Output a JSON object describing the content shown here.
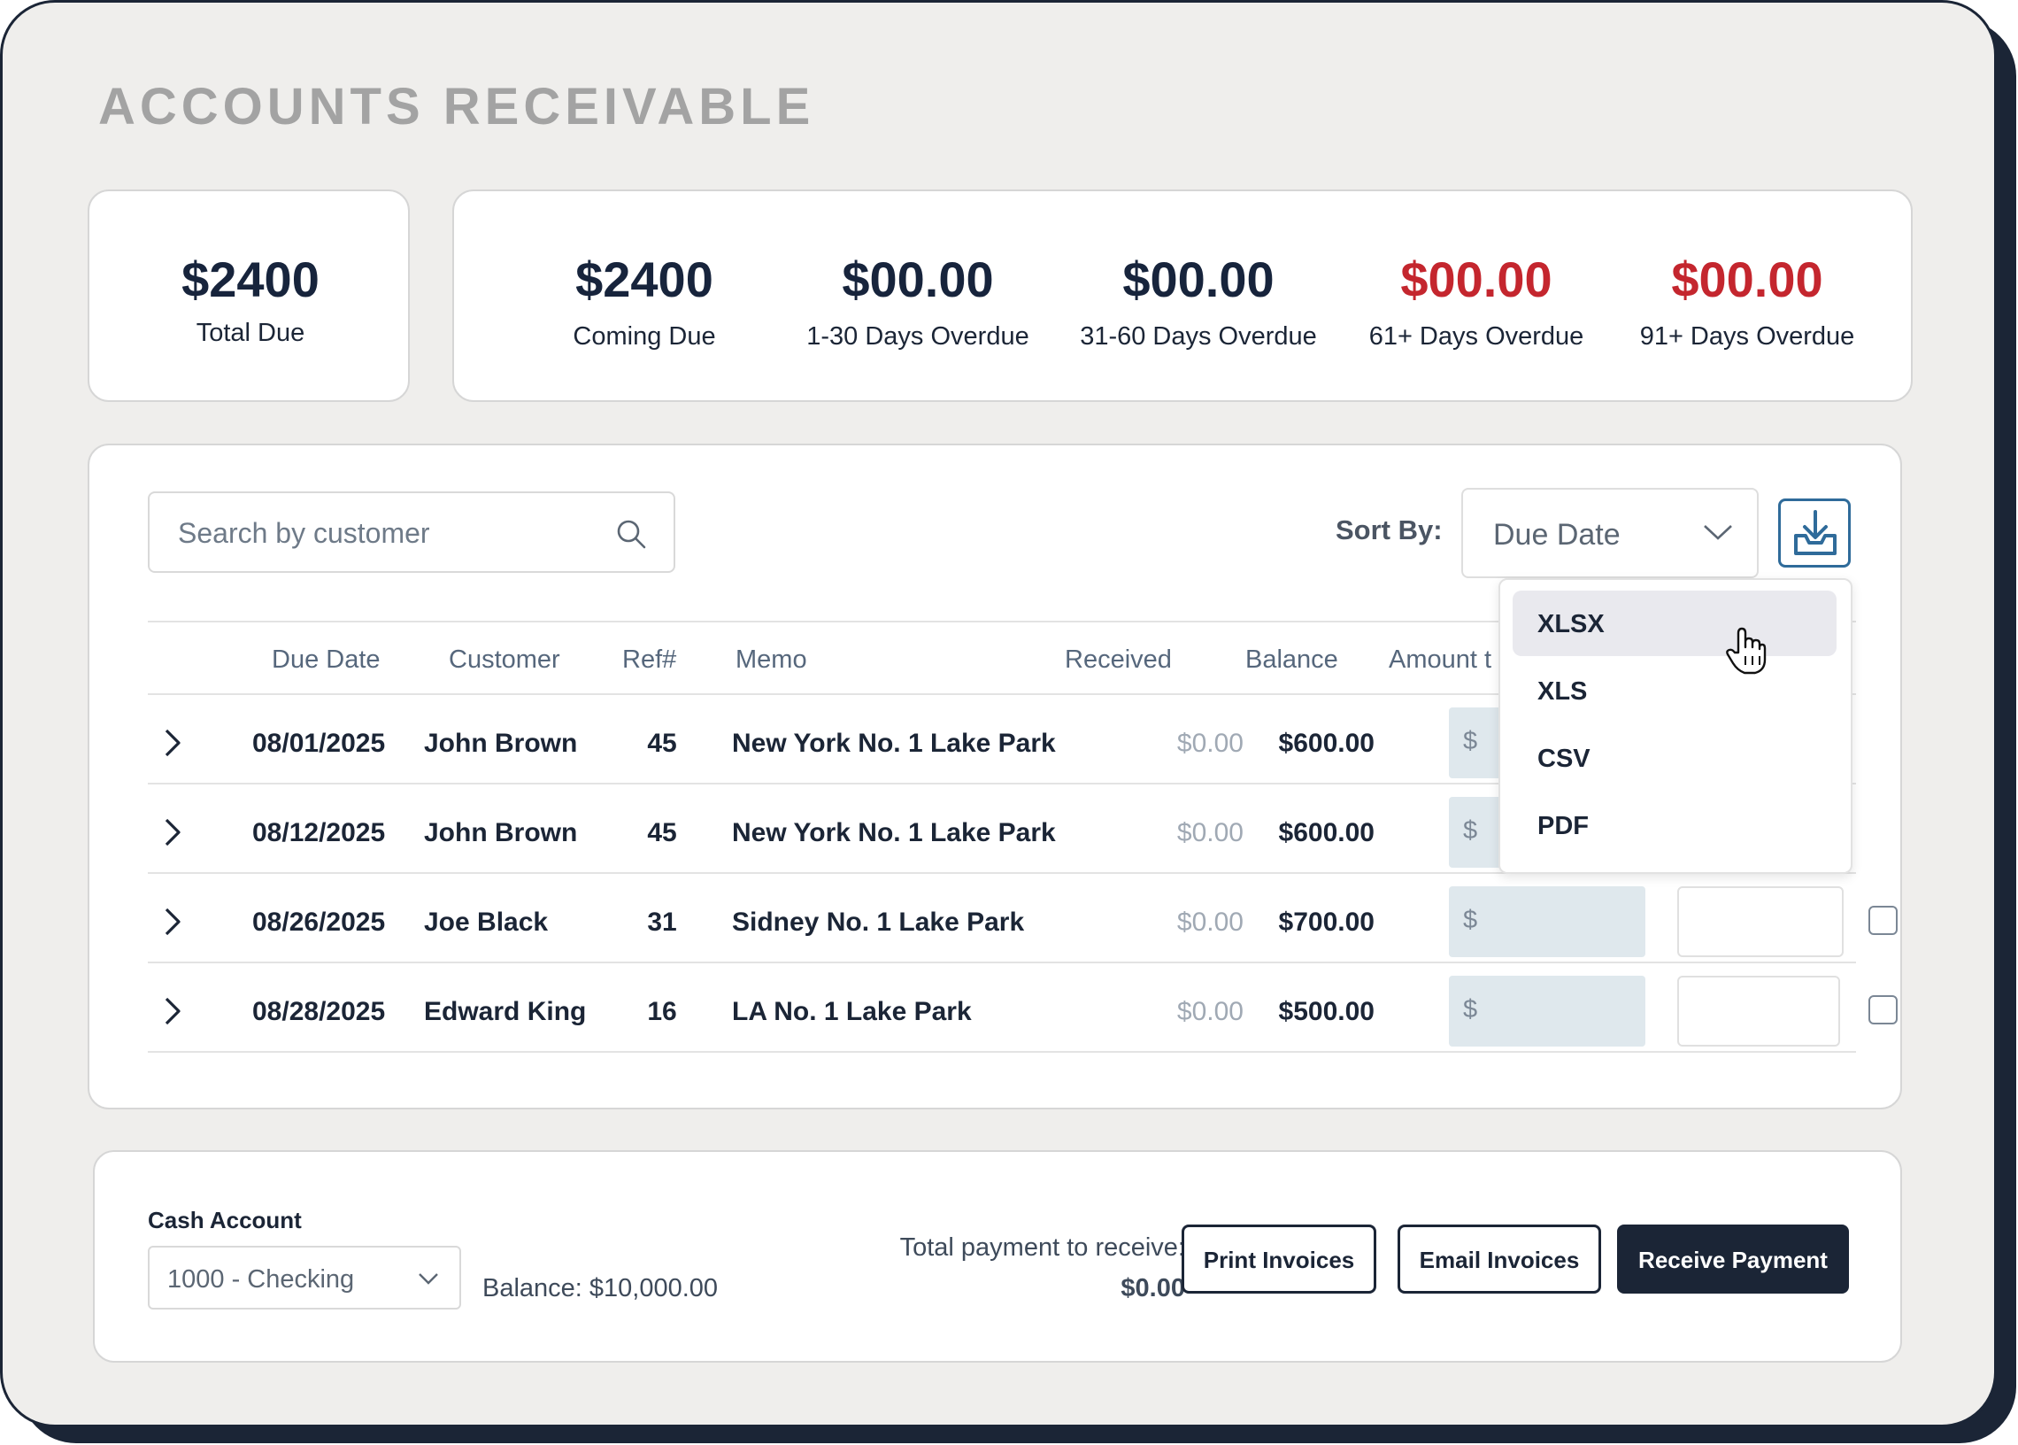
{
  "page": {
    "title": "ACCOUNTS RECEIVABLE"
  },
  "summary": {
    "total": {
      "value": "$2400",
      "label": "Total Due"
    },
    "aging": [
      {
        "value": "$2400",
        "label": "Coming Due",
        "color": "#17243c"
      },
      {
        "value": "$00.00",
        "label": "1-30 Days Overdue",
        "color": "#17243c"
      },
      {
        "value": "$00.00",
        "label": "31-60 Days Overdue",
        "color": "#17243c"
      },
      {
        "value": "$00.00",
        "label": "61+ Days Overdue",
        "color": "#c4262e"
      },
      {
        "value": "$00.00",
        "label": "91+ Days Overdue",
        "color": "#c4262e"
      }
    ]
  },
  "search": {
    "placeholder": "Search by customer",
    "icon": "search-icon"
  },
  "sort": {
    "label": "Sort By:",
    "value": "Due Date",
    "icon": "chevron-down-icon"
  },
  "download": {
    "icon": "download-icon"
  },
  "table": {
    "columns": [
      "Due Date",
      "Customer",
      "Ref#",
      "Memo",
      "Received",
      "Balance",
      "Amount t"
    ],
    "currency_symbol": "$",
    "rows": [
      {
        "due_date": "08/01/2025",
        "customer": "John Brown",
        "ref": "45",
        "memo": "New York No. 1 Lake Park",
        "received": "$0.00",
        "balance": "$600.00"
      },
      {
        "due_date": "08/12/2025",
        "customer": "John Brown",
        "ref": "45",
        "memo": "New York No. 1 Lake Park",
        "received": "$0.00",
        "balance": "$600.00"
      },
      {
        "due_date": "08/26/2025",
        "customer": "Joe Black",
        "ref": "31",
        "memo": "Sidney No. 1 Lake Park",
        "received": "$0.00",
        "balance": "$700.00"
      },
      {
        "due_date": "08/28/2025",
        "customer": "Edward King",
        "ref": "16",
        "memo": "LA No. 1 Lake Park",
        "received": "$0.00",
        "balance": "$500.00"
      }
    ]
  },
  "export_menu": {
    "items": [
      "XLSX",
      "XLS",
      "CSV",
      "PDF"
    ],
    "highlighted": "XLSX"
  },
  "footer": {
    "cash_account_label": "Cash Account",
    "cash_account_value": "1000 - Checking",
    "balance": "Balance: $10,000.00",
    "total_payment_label": "Total payment to receive:",
    "total_payment_value": "$0.00",
    "buttons": {
      "print": "Print Invoices",
      "email": "Email Invoices",
      "receive": "Receive Payment"
    }
  },
  "colors": {
    "navy": "#1b2536",
    "overdue_red": "#c4262e",
    "accent_blue": "#2f6b9a",
    "background": "#efeeec"
  }
}
